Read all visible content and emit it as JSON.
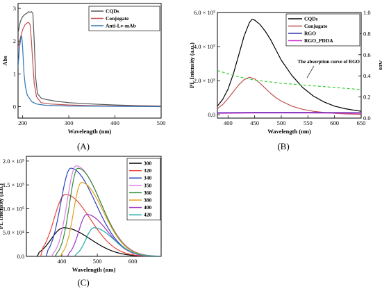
{
  "figure": {
    "panels": [
      {
        "id": "A",
        "label": "(A)"
      },
      {
        "id": "B",
        "label": "(B)"
      },
      {
        "id": "C",
        "label": "(C)"
      }
    ]
  },
  "chart_data": [
    {
      "id": "A",
      "type": "line",
      "title": "",
      "xlabel": "Wavelength (nm)",
      "ylabel": "Abs",
      "xlim": [
        190,
        500
      ],
      "ylim": [
        -0.35,
        3.15
      ],
      "xticks": [
        200,
        300,
        400,
        500
      ],
      "yticks": [
        0,
        1,
        2,
        3
      ],
      "ytick_labels": [
        "0",
        "1",
        "2",
        "3"
      ],
      "legend": "top-right",
      "series": [
        {
          "name": "CQDs",
          "color": "#555555",
          "x": [
            190,
            195,
            200,
            205,
            210,
            213,
            216,
            219,
            222,
            225,
            228,
            232,
            240,
            250,
            270,
            300,
            350,
            400,
            450,
            500
          ],
          "y": [
            2.25,
            2.6,
            2.75,
            2.82,
            2.86,
            2.9,
            2.88,
            2.9,
            2.85,
            2.0,
            0.9,
            0.4,
            0.26,
            0.22,
            0.17,
            0.12,
            0.08,
            0.05,
            0.03,
            0.02
          ]
        },
        {
          "name": "Conjugate",
          "color": "#c0504d",
          "x": [
            190,
            195,
            200,
            205,
            210,
            213,
            216,
            219,
            222,
            225,
            230,
            240,
            260,
            300,
            350,
            400,
            450,
            500
          ],
          "y": [
            1.8,
            2.1,
            2.35,
            2.5,
            2.56,
            2.57,
            2.5,
            2.0,
            1.3,
            0.7,
            0.3,
            0.12,
            0.08,
            0.05,
            0.03,
            0.02,
            0.02,
            0.01
          ]
        },
        {
          "name": "Anti-Lv-mAb",
          "color": "#2e75b6",
          "x": [
            190,
            193,
            196,
            198,
            200,
            203,
            206,
            210,
            215,
            220,
            230,
            250,
            300,
            400,
            500
          ],
          "y": [
            1.2,
            1.8,
            2.1,
            2.15,
            1.8,
            1.0,
            0.6,
            0.35,
            0.25,
            0.15,
            0.08,
            0.04,
            0.02,
            0.01,
            0.0
          ]
        }
      ]
    },
    {
      "id": "B",
      "type": "line",
      "title": "",
      "xlabel": "Wavelength (nm)",
      "ylabel": "PL Intensity (a.u.)",
      "ylabel_right": "Abs",
      "xlim": [
        380,
        650
      ],
      "ylim": [
        -0.2,
        6.0
      ],
      "ylim_right": [
        0.0,
        1.0
      ],
      "xticks": [
        400,
        450,
        500,
        550,
        600,
        650
      ],
      "yticks": [
        0,
        2,
        4,
        6
      ],
      "ytick_labels": [
        "0.0",
        "2.0 × 10⁵",
        "4.0 × 10⁵",
        "6.0 × 10⁵"
      ],
      "yticks_right": [
        0.0,
        0.2,
        0.4,
        0.6,
        0.8,
        1.0
      ],
      "ytick_labels_right": [
        "0.0",
        "0.2",
        "0.4",
        "0.6",
        "0.8",
        "1.0"
      ],
      "legend": "top-right",
      "annotation": "The absorption curve of RGO",
      "series": [
        {
          "name": "CQDs",
          "color": "#000000",
          "x": [
            380,
            390,
            400,
            410,
            420,
            430,
            440,
            445,
            450,
            460,
            470,
            480,
            490,
            500,
            520,
            540,
            560,
            580,
            600,
            620,
            640,
            650
          ],
          "y": [
            0.5,
            0.9,
            1.5,
            2.4,
            3.5,
            4.6,
            5.4,
            5.6,
            5.55,
            5.3,
            4.9,
            4.4,
            3.8,
            3.2,
            2.3,
            1.6,
            1.1,
            0.75,
            0.5,
            0.35,
            0.25,
            0.2
          ]
        },
        {
          "name": "Conjugate",
          "color": "#c0504d",
          "x": [
            380,
            390,
            400,
            410,
            420,
            430,
            440,
            450,
            460,
            470,
            480,
            490,
            500,
            520,
            540,
            560,
            580,
            600,
            620,
            650
          ],
          "y": [
            0.35,
            0.6,
            0.95,
            1.35,
            1.75,
            2.05,
            2.2,
            2.1,
            1.85,
            1.55,
            1.25,
            1.0,
            0.8,
            0.5,
            0.32,
            0.2,
            0.13,
            0.08,
            0.05,
            0.02
          ]
        },
        {
          "name": "RGO",
          "color": "#3333aa",
          "x": [
            380,
            450,
            550,
            650
          ],
          "y": [
            0.12,
            0.14,
            0.14,
            0.12
          ]
        },
        {
          "name": "RGO_PDDA",
          "color": "#cc33cc",
          "x": [
            380,
            450,
            550,
            650
          ],
          "y": [
            0.08,
            0.1,
            0.1,
            0.08
          ]
        },
        {
          "name": "",
          "color": "#33cc33",
          "axis": "right",
          "dashed": true,
          "x": [
            380,
            400,
            420,
            450,
            500,
            550,
            600,
            650
          ],
          "y": [
            0.45,
            0.42,
            0.39,
            0.36,
            0.33,
            0.31,
            0.29,
            0.27
          ]
        }
      ]
    },
    {
      "id": "C",
      "type": "line",
      "title": "",
      "xlabel": "Wavelength (nm)",
      "ylabel": "PL Intensity (a.u.)",
      "xlim": [
        300,
        680
      ],
      "ylim": [
        0,
        2.1
      ],
      "xticks": [
        400,
        500,
        600
      ],
      "yticks": [
        0,
        0.5,
        1.0,
        1.5,
        2.0
      ],
      "ytick_labels": [
        "0.0",
        "5.0 × 10⁴",
        "1.0 × 10⁵",
        "1.5 × 10⁵",
        "2.0 × 10⁵"
      ],
      "legend": "top-right",
      "series": [
        {
          "name": "300",
          "color": "#000000",
          "peak": 405,
          "amp": 0.6,
          "start": 330,
          "sigL": 35,
          "sigR": 75
        },
        {
          "name": "320",
          "color": "#e8433a",
          "peak": 410,
          "amp": 1.3,
          "start": 340,
          "sigL": 32,
          "sigR": 70
        },
        {
          "name": "340",
          "color": "#2a3fbf",
          "peak": 425,
          "amp": 1.85,
          "start": 355,
          "sigL": 28,
          "sigR": 70
        },
        {
          "name": "350",
          "color": "#e07be0",
          "peak": 440,
          "amp": 1.9,
          "start": 370,
          "sigL": 25,
          "sigR": 68
        },
        {
          "name": "360",
          "color": "#2e8b3a",
          "peak": 445,
          "amp": 1.85,
          "start": 380,
          "sigL": 23,
          "sigR": 65
        },
        {
          "name": "380",
          "color": "#e0a020",
          "peak": 455,
          "amp": 1.55,
          "start": 395,
          "sigL": 22,
          "sigR": 62
        },
        {
          "name": "400",
          "color": "#9b30c0",
          "peak": 470,
          "amp": 0.88,
          "start": 415,
          "sigL": 22,
          "sigR": 58
        },
        {
          "name": "420",
          "color": "#20a8a8",
          "peak": 490,
          "amp": 0.6,
          "start": 435,
          "sigL": 22,
          "sigR": 55
        }
      ]
    }
  ]
}
